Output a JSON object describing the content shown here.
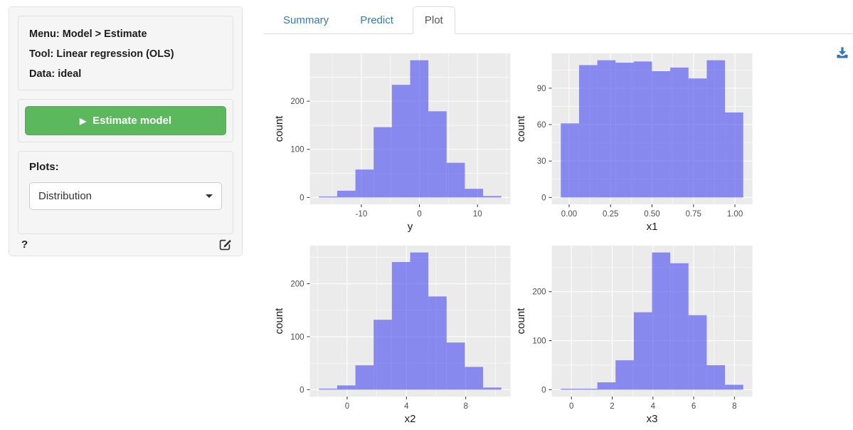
{
  "sidebar": {
    "menu_line": "Menu: Model > Estimate",
    "tool_line": "Tool: Linear regression (OLS)",
    "data_line": "Data: ideal",
    "estimate_button_label": "Estimate model",
    "plots_label": "Plots:",
    "plots_selected": "Distribution",
    "help_label": "?"
  },
  "tabs": [
    {
      "label": "Summary",
      "active": false
    },
    {
      "label": "Predict",
      "active": false
    },
    {
      "label": "Plot",
      "active": true
    }
  ],
  "icons": {
    "play_glyph": "▶",
    "estimate_play": "play-icon",
    "plots_caret": "chevron-down-icon",
    "help": "question-mark-icon",
    "edit": "edit-pencil-square-icon",
    "download": "download-icon"
  },
  "colors": {
    "button_green": "#5cb85c",
    "button_green_border": "#4cae4c",
    "link_blue": "#337ab7",
    "active_tab_text": "#555555",
    "bar_fill": "rgba(70,72,240,0.6)",
    "panel_bg": "#ebebeb",
    "gridline": "#ffffff",
    "tick_mark": "#333333",
    "tick_label": "#4d4d4d",
    "axis_title": "#1a1a1a",
    "download_icon": "#3177b2"
  },
  "chart_data": [
    {
      "type": "bar",
      "subtype": "histogram",
      "variable": "y",
      "xlabel": "y",
      "ylabel": "count",
      "bin_start": -17.3,
      "bin_width": 3.14,
      "counts": [
        2,
        14,
        58,
        146,
        234,
        285,
        179,
        72,
        18,
        3
      ],
      "x_tick_values": [
        -10,
        0,
        10
      ],
      "x_tick_labels": [
        "-10",
        "0",
        "10"
      ],
      "y_tick_values": [
        0,
        100,
        200
      ],
      "y_tick_labels": [
        "0",
        "100",
        "200"
      ],
      "xlim": [
        -18.9,
        15.7
      ],
      "ylim": [
        0,
        285
      ],
      "grid": true,
      "legend": false
    },
    {
      "type": "bar",
      "subtype": "histogram",
      "variable": "x1",
      "xlabel": "x1",
      "ylabel": "count",
      "bin_start": -0.05,
      "bin_width": 0.11,
      "counts": [
        61,
        109,
        113,
        111,
        112,
        104,
        107,
        98,
        113,
        70
      ],
      "x_tick_values": [
        0,
        0.25,
        0.5,
        0.75,
        1
      ],
      "x_tick_labels": [
        "0.00",
        "0.25",
        "0.50",
        "0.75",
        "1.00"
      ],
      "y_tick_values": [
        0,
        30,
        60,
        90
      ],
      "y_tick_labels": [
        "0",
        "30",
        "60",
        "90"
      ],
      "xlim": [
        -0.11,
        1.11
      ],
      "ylim": [
        0,
        113
      ],
      "grid": true,
      "legend": false
    },
    {
      "type": "bar",
      "subtype": "histogram",
      "variable": "x2",
      "xlabel": "x2",
      "ylabel": "count",
      "bin_start": -1.9,
      "bin_width": 1.23,
      "counts": [
        2,
        8,
        46,
        132,
        241,
        259,
        176,
        89,
        43,
        4
      ],
      "x_tick_values": [
        0,
        4,
        8
      ],
      "x_tick_labels": [
        "0",
        "4",
        "8"
      ],
      "y_tick_values": [
        0,
        100,
        200
      ],
      "y_tick_labels": [
        "0",
        "100",
        "200"
      ],
      "xlim": [
        -2.5,
        11.0
      ],
      "ylim": [
        0,
        259
      ],
      "grid": true,
      "legend": false
    },
    {
      "type": "bar",
      "subtype": "histogram",
      "variable": "x3",
      "xlabel": "x3",
      "ylabel": "count",
      "bin_start": -0.52,
      "bin_width": 0.895,
      "counts": [
        2,
        2,
        15,
        60,
        158,
        280,
        258,
        152,
        50,
        10
      ],
      "x_tick_values": [
        0,
        2,
        4,
        6,
        8
      ],
      "x_tick_labels": [
        "0",
        "2",
        "4",
        "6",
        "8"
      ],
      "y_tick_values": [
        0,
        100,
        200
      ],
      "y_tick_labels": [
        "0",
        "100",
        "200"
      ],
      "xlim": [
        -1.0,
        8.9
      ],
      "ylim": [
        0,
        280
      ],
      "grid": true,
      "legend": false
    }
  ]
}
